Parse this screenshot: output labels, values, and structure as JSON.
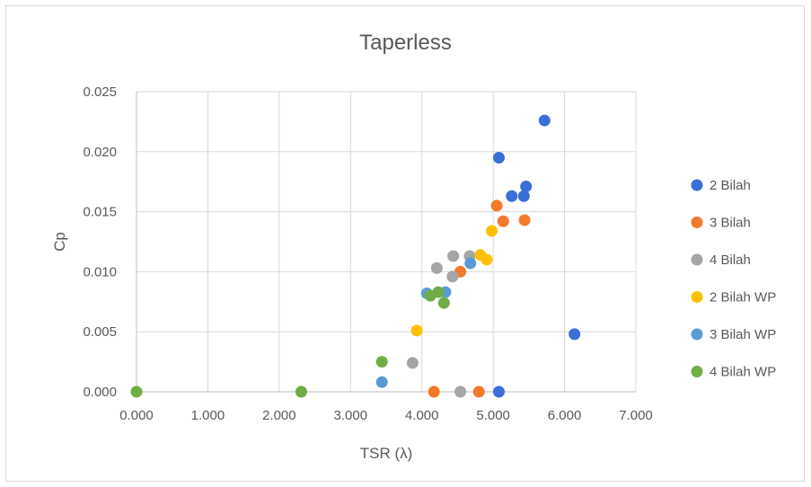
{
  "chart_data": {
    "type": "scatter",
    "title": "Taperless",
    "xlabel": "TSR (λ)",
    "ylabel": "Cp",
    "xlim": [
      0,
      7
    ],
    "ylim": [
      0,
      0.025
    ],
    "x_ticks": [
      "0.000",
      "1.000",
      "2.000",
      "3.000",
      "4.000",
      "5.000",
      "6.000",
      "7.000"
    ],
    "y_ticks": [
      "0.000",
      "0.005",
      "0.010",
      "0.015",
      "0.020",
      "0.025"
    ],
    "x_tick_values": [
      0,
      1,
      2,
      3,
      4,
      5,
      6,
      7
    ],
    "y_tick_values": [
      0,
      0.005,
      0.01,
      0.015,
      0.02,
      0.025
    ],
    "grid": true,
    "legend_position": "right",
    "series": [
      {
        "name": "2 Bilah",
        "color": "#3A6FD8",
        "points": [
          [
            5.72,
            0.0226
          ],
          [
            5.08,
            0.0195
          ],
          [
            5.46,
            0.0171
          ],
          [
            5.26,
            0.0163
          ],
          [
            5.43,
            0.0163
          ],
          [
            6.14,
            0.0048
          ],
          [
            5.08,
            0.0
          ]
        ]
      },
      {
        "name": "3 Bilah",
        "color": "#F4792B",
        "points": [
          [
            5.05,
            0.0155
          ],
          [
            5.14,
            0.0142
          ],
          [
            5.44,
            0.0143
          ],
          [
            4.54,
            0.01
          ],
          [
            4.17,
            0.0
          ],
          [
            4.8,
            0.0
          ]
        ]
      },
      {
        "name": "4 Bilah",
        "color": "#A5A5A5",
        "points": [
          [
            4.44,
            0.0113
          ],
          [
            4.67,
            0.0113
          ],
          [
            4.21,
            0.0103
          ],
          [
            4.43,
            0.0096
          ],
          [
            3.87,
            0.0024
          ],
          [
            4.54,
            0.0
          ]
        ]
      },
      {
        "name": "2 Bilah WP",
        "color": "#FFC000",
        "points": [
          [
            4.98,
            0.0134
          ],
          [
            4.82,
            0.0114
          ],
          [
            4.91,
            0.011
          ],
          [
            3.93,
            0.0051
          ]
        ]
      },
      {
        "name": "3 Bilah WP",
        "color": "#5B9BD5",
        "points": [
          [
            4.68,
            0.0107
          ],
          [
            4.07,
            0.0082
          ],
          [
            4.33,
            0.0083
          ],
          [
            3.44,
            0.0008
          ]
        ]
      },
      {
        "name": "4 Bilah WP",
        "color": "#70AD47",
        "points": [
          [
            4.12,
            0.008
          ],
          [
            4.23,
            0.0083
          ],
          [
            4.31,
            0.0074
          ],
          [
            3.44,
            0.0025
          ],
          [
            2.31,
            0.0
          ],
          [
            0.0,
            0.0
          ]
        ]
      }
    ]
  }
}
